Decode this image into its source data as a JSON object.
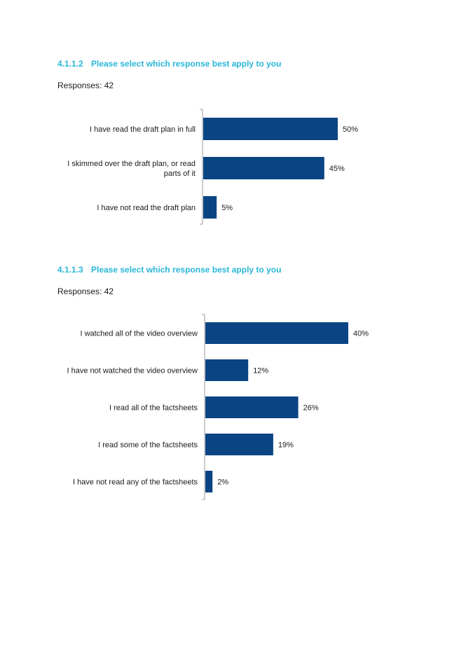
{
  "sections": [
    {
      "number": "4.1.1.2",
      "title": "Please select which response best apply to you",
      "responses_label": "Responses: 42"
    },
    {
      "number": "4.1.1.3",
      "title": "Please select which response best apply to you",
      "responses_label": "Responses: 42"
    }
  ],
  "colors": {
    "bar": "#0b4483",
    "heading": "#2ab7d8",
    "axis": "#9a9a9a"
  },
  "chart_data": [
    {
      "type": "bar",
      "orientation": "horizontal",
      "title": "",
      "xlabel": "",
      "ylabel": "",
      "categories": [
        [
          "I have read the draft plan in full"
        ],
        [
          "I skimmed over the draft plan, or read",
          "parts of it"
        ],
        [
          "I have not read the draft plan"
        ]
      ],
      "values": [
        50,
        45,
        5
      ],
      "value_labels": [
        "50%",
        "45%",
        "5%"
      ],
      "xlim": [
        0,
        50
      ],
      "grid": false
    },
    {
      "type": "bar",
      "orientation": "horizontal",
      "title": "",
      "xlabel": "",
      "ylabel": "",
      "categories": [
        [
          "I watched all of the video overview"
        ],
        [
          "I have not watched the video overview"
        ],
        [
          "I read all of the factsheets"
        ],
        [
          "I read some of the factsheets"
        ],
        [
          "I have not read any of the factsheets"
        ]
      ],
      "values": [
        40,
        12,
        26,
        19,
        2
      ],
      "value_labels": [
        "40%",
        "12%",
        "26%",
        "19%",
        "2%"
      ],
      "xlim": [
        0,
        40
      ],
      "grid": false
    }
  ]
}
